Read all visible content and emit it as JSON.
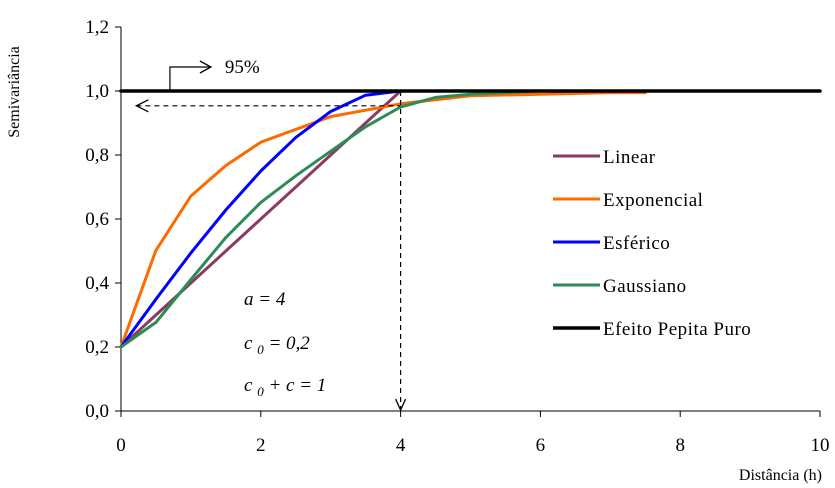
{
  "chart_data": {
    "type": "line",
    "title": "",
    "xlabel": "Distância (h)",
    "ylabel": "Semivariância",
    "xlim": [
      0,
      10
    ],
    "ylim": [
      0,
      1.2
    ],
    "x_ticks": [
      0,
      2,
      4,
      6,
      8,
      10
    ],
    "x_tick_labels": [
      "0",
      "2",
      "4",
      "6",
      "8",
      "10"
    ],
    "y_ticks": [
      0,
      0.2,
      0.4,
      0.6,
      0.8,
      1.0,
      1.2
    ],
    "y_tick_labels": [
      "0,0",
      "0,2",
      "0,4",
      "0,6",
      "0,8",
      "1,0",
      "1,2"
    ],
    "grid": false,
    "legend_position": "right",
    "series": [
      {
        "name": "Linear",
        "color": "#8B3A62",
        "x": [
          0,
          0.5,
          1,
          1.5,
          2,
          2.5,
          3,
          3.5,
          3.9,
          4.0
        ],
        "y": [
          0.2,
          0.3,
          0.4,
          0.5,
          0.6,
          0.7,
          0.8,
          0.9,
          0.98,
          1.0
        ]
      },
      {
        "name": "Exponencial",
        "color": "#FF6A00",
        "x": [
          0,
          0.5,
          1,
          1.5,
          2,
          2.5,
          3,
          3.5,
          4,
          5,
          6,
          7,
          7.5
        ],
        "y": [
          0.2,
          0.502,
          0.672,
          0.767,
          0.84,
          0.88,
          0.92,
          0.94,
          0.96,
          0.985,
          0.99,
          0.995,
          0.995
        ]
      },
      {
        "name": "Esférico",
        "color": "#0000FF",
        "x": [
          0,
          0.5,
          1,
          1.5,
          2,
          2.5,
          3,
          3.5,
          4
        ],
        "y": [
          0.2,
          0.349,
          0.494,
          0.628,
          0.75,
          0.855,
          0.936,
          0.987,
          1.0
        ]
      },
      {
        "name": "Gaussiano",
        "color": "#2E8B57",
        "x": [
          0,
          0.5,
          1,
          1.5,
          2,
          2.5,
          3,
          3.5,
          4,
          4.5,
          5,
          5.5,
          6
        ],
        "y": [
          0.2,
          0.277,
          0.411,
          0.542,
          0.652,
          0.735,
          0.812,
          0.888,
          0.95,
          0.98,
          0.99,
          0.995,
          1.0
        ]
      },
      {
        "name": "Efeito Pepita Puro",
        "color": "#000000",
        "x": [
          0,
          10
        ],
        "y": [
          1.0,
          1.0
        ]
      }
    ],
    "annotations": {
      "percent_label": "95%",
      "param_a": "a = 4",
      "param_c0": "c0 = 0,2",
      "param_sill": "c0 + c = 1",
      "range_x": 4,
      "level_95": 0.96
    }
  }
}
